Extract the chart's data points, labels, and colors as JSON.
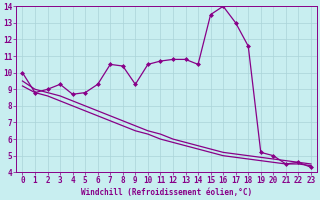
{
  "xlabel": "Windchill (Refroidissement éolien,°C)",
  "xlim": [
    -0.5,
    23.5
  ],
  "ylim": [
    4,
    14
  ],
  "xticks": [
    0,
    1,
    2,
    3,
    4,
    5,
    6,
    7,
    8,
    9,
    10,
    11,
    12,
    13,
    14,
    15,
    16,
    17,
    18,
    19,
    20,
    21,
    22,
    23
  ],
  "yticks": [
    4,
    5,
    6,
    7,
    8,
    9,
    10,
    11,
    12,
    13,
    14
  ],
  "bg_color": "#c8eef0",
  "grid_color": "#aad4d8",
  "line_color": "#880088",
  "series1_x": [
    0,
    1,
    2,
    3,
    4,
    5,
    6,
    7,
    8,
    9,
    10,
    11,
    12,
    13,
    14,
    15,
    16,
    17,
    18,
    19,
    20,
    21,
    22,
    23
  ],
  "series1_y": [
    10.0,
    8.8,
    9.0,
    9.3,
    8.7,
    8.8,
    9.3,
    10.5,
    10.4,
    9.3,
    10.5,
    10.7,
    10.8,
    10.8,
    10.5,
    13.5,
    14.0,
    13.0,
    11.6,
    5.2,
    5.0,
    4.5,
    4.6,
    4.3
  ],
  "series2_x": [
    0,
    1,
    2,
    3,
    4,
    5,
    6,
    7,
    8,
    9,
    10,
    11,
    12,
    13,
    14,
    15,
    16,
    17,
    18,
    19,
    20,
    21,
    22,
    23
  ],
  "series2_y": [
    9.5,
    9.0,
    8.8,
    8.6,
    8.3,
    8.0,
    7.7,
    7.4,
    7.1,
    6.8,
    6.5,
    6.3,
    6.0,
    5.8,
    5.6,
    5.4,
    5.2,
    5.1,
    5.0,
    4.9,
    4.8,
    4.7,
    4.6,
    4.5
  ],
  "series3_x": [
    0,
    1,
    2,
    3,
    4,
    5,
    6,
    7,
    8,
    9,
    10,
    11,
    12,
    13,
    14,
    15,
    16,
    17,
    18,
    19,
    20,
    21,
    22,
    23
  ],
  "series3_y": [
    9.2,
    8.8,
    8.6,
    8.3,
    8.0,
    7.7,
    7.4,
    7.1,
    6.8,
    6.5,
    6.3,
    6.0,
    5.8,
    5.6,
    5.4,
    5.2,
    5.0,
    4.9,
    4.8,
    4.7,
    4.6,
    4.5,
    4.5,
    4.4
  ]
}
